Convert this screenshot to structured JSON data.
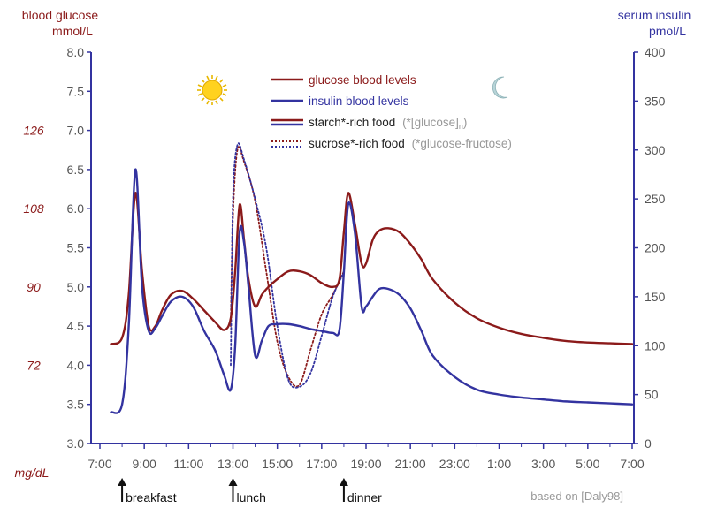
{
  "chart_data": {
    "type": "line",
    "y_left": {
      "title_line1": "blood glucose",
      "title_line2": "mmol/L",
      "range": [
        3.0,
        8.0
      ],
      "ticks": [
        "3.0",
        "3.5",
        "4.0",
        "4.5",
        "5.0",
        "5.5",
        "6.0",
        "6.5",
        "7.0",
        "7.5",
        "8.0"
      ],
      "mgdl_label": "mg/dL",
      "mgdl_ticks": [
        {
          "text": "126",
          "mmol": 7.0
        },
        {
          "text": "108",
          "mmol": 6.0
        },
        {
          "text": "90",
          "mmol": 5.0
        },
        {
          "text": "72",
          "mmol": 4.0
        }
      ]
    },
    "y_right": {
      "title_line1": "serum insulin",
      "title_line2": "pmol/L",
      "range": [
        0,
        400
      ],
      "ticks": [
        "0",
        "50",
        "100",
        "150",
        "200",
        "250",
        "300",
        "350",
        "400"
      ]
    },
    "x_axis": {
      "range": [
        7,
        31.5
      ],
      "ticks": [
        "7:00",
        "9:00",
        "11:00",
        "13:00",
        "15:00",
        "17:00",
        "19:00",
        "21:00",
        "23:00",
        "1:00",
        "3:00",
        "5:00",
        "7:00"
      ],
      "tick_hours": [
        7,
        9,
        11,
        13,
        15,
        17,
        19,
        21,
        23,
        25,
        27,
        29,
        31
      ]
    },
    "legend": [
      {
        "label": "glucose blood levels",
        "color": "#8b1a1a",
        "style": "solid"
      },
      {
        "label": "insulin blood levels",
        "color": "#3333a0",
        "style": "solid"
      },
      {
        "label": "starch*-rich food",
        "note": "(*[glucose]",
        "note_sub": "n",
        "note_end": ")",
        "color": "mixed",
        "style": "solid"
      },
      {
        "label": "sucrose*-rich food",
        "note": "(*glucose-fructose)",
        "color": "mixed",
        "style": "dotted"
      }
    ],
    "meals": [
      {
        "label": "breakfast",
        "hour": 8.0
      },
      {
        "label": "lunch",
        "hour": 13.0
      },
      {
        "label": "dinner",
        "hour": 18.0
      }
    ],
    "source_note": "based on [Daly98]",
    "icons": {
      "day": "sun-icon",
      "night": "moon-icon"
    },
    "colors": {
      "glucose": "#8b1a1a",
      "insulin": "#3333a0",
      "axis": "#3333a0",
      "label_red": "#8b1a1a"
    },
    "series": [
      {
        "name": "glucose blood levels",
        "axis": "left",
        "style": "solid",
        "color": "#8b1a1a",
        "x": [
          7.5,
          8.0,
          8.3,
          8.6,
          8.9,
          9.2,
          9.5,
          9.8,
          10.2,
          10.7,
          11.2,
          11.7,
          12.2,
          12.6,
          12.9,
          13.1,
          13.3,
          13.5,
          13.7,
          14.0,
          14.3,
          14.6,
          15.0,
          15.5,
          16.0,
          16.5,
          17.0,
          17.5,
          17.8,
          18.0,
          18.2,
          18.5,
          18.8,
          19.0,
          19.3,
          19.6,
          20.0,
          20.5,
          21.0,
          21.5,
          22.0,
          23.0,
          24.0,
          25.0,
          26.0,
          27.0,
          28.0,
          29.0,
          30.0,
          31.0
        ],
        "y": [
          4.27,
          4.35,
          4.9,
          6.2,
          5.2,
          4.5,
          4.5,
          4.7,
          4.9,
          4.95,
          4.85,
          4.7,
          4.55,
          4.45,
          4.6,
          5.2,
          6.05,
          5.6,
          5.1,
          4.75,
          4.9,
          5.0,
          5.1,
          5.2,
          5.2,
          5.15,
          5.05,
          5.0,
          5.1,
          5.7,
          6.2,
          5.8,
          5.3,
          5.3,
          5.6,
          5.72,
          5.75,
          5.7,
          5.55,
          5.35,
          5.1,
          4.8,
          4.6,
          4.48,
          4.4,
          4.35,
          4.31,
          4.29,
          4.28,
          4.27
        ]
      },
      {
        "name": "insulin blood levels",
        "axis": "right",
        "style": "solid",
        "color": "#3333a0",
        "x": [
          7.5,
          8.0,
          8.3,
          8.6,
          8.9,
          9.2,
          9.5,
          9.8,
          10.2,
          10.7,
          11.2,
          11.7,
          12.2,
          12.6,
          12.9,
          13.1,
          13.3,
          13.5,
          13.7,
          14.0,
          14.3,
          14.6,
          15.0,
          15.5,
          16.0,
          16.5,
          17.0,
          17.5,
          17.8,
          18.0,
          18.2,
          18.5,
          18.8,
          19.0,
          19.3,
          19.6,
          20.0,
          20.5,
          21.0,
          21.5,
          22.0,
          23.0,
          24.0,
          25.0,
          26.0,
          27.0,
          28.0,
          29.0,
          30.0,
          31.0
        ],
        "y": [
          32,
          40,
          120,
          280,
          160,
          115,
          118,
          130,
          145,
          150,
          140,
          115,
          95,
          70,
          55,
          100,
          215,
          205,
          160,
          90,
          105,
          120,
          122,
          122,
          120,
          117,
          115,
          113,
          116,
          175,
          245,
          215,
          140,
          140,
          150,
          158,
          158,
          152,
          138,
          115,
          90,
          68,
          55,
          50,
          47,
          45,
          43,
          42,
          41,
          40
        ]
      },
      {
        "name": "glucose, sucrose*-rich food",
        "axis": "left",
        "style": "dotted",
        "color": "#8b1a1a",
        "x": [
          12.9,
          13.0,
          13.2,
          13.5,
          14.0,
          14.5,
          15.0,
          15.5,
          16.0,
          16.5,
          17.0,
          17.5,
          18.0
        ],
        "y": [
          4.5,
          5.9,
          6.75,
          6.6,
          6.1,
          5.2,
          4.3,
          3.85,
          3.75,
          4.2,
          4.65,
          4.9,
          5.2
        ]
      },
      {
        "name": "insulin, sucrose*-rich food",
        "axis": "right",
        "style": "dotted",
        "color": "#3333a0",
        "x": [
          12.9,
          13.0,
          13.2,
          13.5,
          14.0,
          14.5,
          15.0,
          15.5,
          16.0,
          16.5,
          17.0,
          17.5,
          18.0
        ],
        "y": [
          80,
          250,
          305,
          290,
          250,
          200,
          120,
          65,
          58,
          72,
          110,
          150,
          175
        ]
      }
    ]
  }
}
